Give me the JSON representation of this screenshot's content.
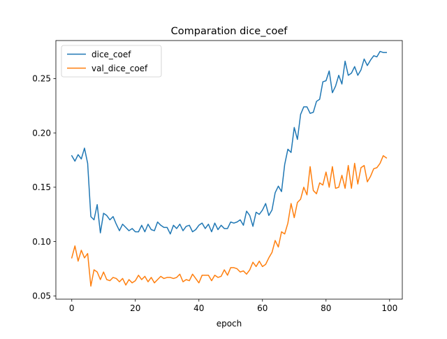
{
  "chart_data": {
    "type": "line",
    "title": "Comparation dice_coef",
    "xlabel": "epoch",
    "ylabel": "",
    "xlim": [
      -5,
      104
    ],
    "ylim": [
      0.047,
      0.285
    ],
    "x_ticks": [
      0,
      20,
      40,
      60,
      80,
      100
    ],
    "y_ticks": [
      0.05,
      0.1,
      0.15,
      0.2,
      0.25
    ],
    "y_tick_labels": [
      "0.05",
      "0.10",
      "0.15",
      "0.20",
      "0.25"
    ],
    "legend_position": "top-left",
    "grid": false,
    "series": [
      {
        "name": "dice_coef",
        "color": "#1f77b4",
        "values": [
          0.179,
          0.174,
          0.18,
          0.176,
          0.186,
          0.172,
          0.123,
          0.12,
          0.134,
          0.108,
          0.126,
          0.124,
          0.12,
          0.123,
          0.116,
          0.11,
          0.116,
          0.113,
          0.11,
          0.112,
          0.109,
          0.109,
          0.115,
          0.109,
          0.116,
          0.111,
          0.11,
          0.118,
          0.115,
          0.113,
          0.113,
          0.107,
          0.115,
          0.112,
          0.116,
          0.11,
          0.114,
          0.115,
          0.109,
          0.111,
          0.115,
          0.117,
          0.112,
          0.116,
          0.109,
          0.117,
          0.111,
          0.115,
          0.112,
          0.112,
          0.118,
          0.117,
          0.118,
          0.12,
          0.115,
          0.128,
          0.124,
          0.114,
          0.127,
          0.125,
          0.129,
          0.135,
          0.124,
          0.129,
          0.145,
          0.151,
          0.146,
          0.171,
          0.185,
          0.182,
          0.205,
          0.194,
          0.217,
          0.224,
          0.224,
          0.218,
          0.219,
          0.229,
          0.231,
          0.247,
          0.248,
          0.257,
          0.237,
          0.243,
          0.253,
          0.245,
          0.266,
          0.253,
          0.255,
          0.261,
          0.253,
          0.258,
          0.268,
          0.262,
          0.267,
          0.271,
          0.27,
          0.275,
          0.274,
          0.274
        ]
      },
      {
        "name": "val_dice_coef",
        "color": "#ff7f0e",
        "values": [
          0.085,
          0.096,
          0.082,
          0.092,
          0.085,
          0.089,
          0.059,
          0.074,
          0.072,
          0.065,
          0.072,
          0.065,
          0.064,
          0.067,
          0.066,
          0.063,
          0.066,
          0.06,
          0.065,
          0.062,
          0.064,
          0.069,
          0.065,
          0.068,
          0.063,
          0.067,
          0.062,
          0.065,
          0.068,
          0.066,
          0.067,
          0.067,
          0.066,
          0.067,
          0.07,
          0.063,
          0.065,
          0.064,
          0.07,
          0.066,
          0.062,
          0.069,
          0.069,
          0.069,
          0.064,
          0.069,
          0.067,
          0.068,
          0.074,
          0.069,
          0.076,
          0.076,
          0.075,
          0.072,
          0.073,
          0.07,
          0.074,
          0.081,
          0.077,
          0.082,
          0.077,
          0.079,
          0.085,
          0.09,
          0.101,
          0.095,
          0.109,
          0.107,
          0.117,
          0.135,
          0.122,
          0.136,
          0.139,
          0.15,
          0.143,
          0.169,
          0.147,
          0.144,
          0.154,
          0.152,
          0.164,
          0.15,
          0.169,
          0.149,
          0.15,
          0.161,
          0.149,
          0.17,
          0.149,
          0.172,
          0.153,
          0.168,
          0.17,
          0.155,
          0.16,
          0.167,
          0.168,
          0.172,
          0.179,
          0.177
        ]
      }
    ]
  }
}
